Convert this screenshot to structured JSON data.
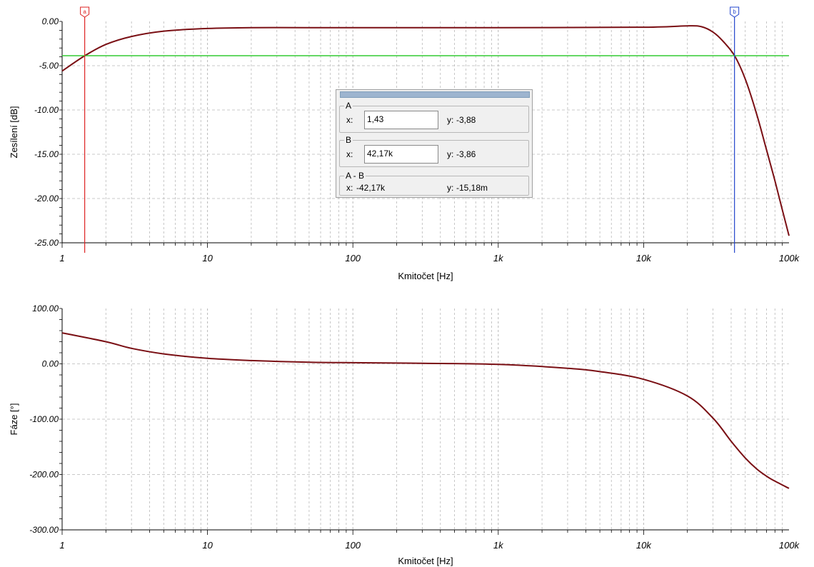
{
  "colors": {
    "curve": "#7a0f14",
    "cursor_a": "#dd2222",
    "cursor_b": "#2244cc",
    "level_line": "#33cc33",
    "grid": "#b8b8b8"
  },
  "gain_plot": {
    "ylabel": "Zesílení [dB]",
    "xlabel": "Kmitočet [Hz]",
    "y_ticks": [
      "0.00",
      "-5.00",
      "-10.00",
      "-15.00",
      "-20.00",
      "-25.00"
    ],
    "x_ticks": [
      "1",
      "10",
      "100",
      "1k",
      "10k",
      "100k"
    ]
  },
  "phase_plot": {
    "ylabel": "Fáze [°]",
    "xlabel": "Kmitočet [Hz]",
    "y_ticks": [
      "100.00",
      "0.00",
      "-100.00",
      "-200.00",
      "-300.00"
    ],
    "x_ticks": [
      "1",
      "10",
      "100",
      "1k",
      "10k",
      "100k"
    ]
  },
  "cursors": {
    "a_tag": "a",
    "b_tag": "b"
  },
  "readout": {
    "a": {
      "label": "A",
      "x_label": "x:",
      "x_value": "1,43",
      "y_label": "y:",
      "y_value": "-3,88"
    },
    "b": {
      "label": "B",
      "x_label": "x:",
      "x_value": "42,17k",
      "y_label": "y:",
      "y_value": "-3,86"
    },
    "diff": {
      "label": "A - B",
      "x_label": "x:",
      "x_value": "-42,17k",
      "y_label": "y:",
      "y_value": "-15,18m"
    }
  },
  "chart_data": [
    {
      "type": "line",
      "xscale": "log",
      "xlim": [
        1,
        100000
      ],
      "ylim": [
        -25,
        0
      ],
      "xlabel": "Kmitočet [Hz]",
      "ylabel": "Zesílení [dB]",
      "grid": true,
      "series": [
        {
          "x": [
            1,
            1.43,
            2,
            3,
            5,
            10,
            20,
            50,
            100,
            1000,
            10000,
            20000,
            25000,
            30000,
            35000,
            42170,
            50000,
            60000,
            70000,
            80000,
            90000,
            100000
          ],
          "y": [
            -5.6,
            -3.88,
            -2.6,
            -1.7,
            -1.1,
            -0.8,
            -0.7,
            -0.7,
            -0.7,
            -0.7,
            -0.65,
            -0.5,
            -0.6,
            -1.2,
            -2.2,
            -3.86,
            -6.5,
            -10.5,
            -14.5,
            -18.0,
            -21.3,
            -24.2
          ]
        }
      ],
      "cursors": [
        {
          "name": "a",
          "x": 1.43,
          "y": -3.88
        },
        {
          "name": "b",
          "x": 42170,
          "y": -3.86
        }
      ],
      "level_line_y": -3.87
    },
    {
      "type": "line",
      "xscale": "log",
      "xlim": [
        1,
        100000
      ],
      "ylim": [
        -300,
        100
      ],
      "xlabel": "Kmitočet [Hz]",
      "ylabel": "Fáze [°]",
      "grid": true,
      "series": [
        {
          "x": [
            1,
            2,
            3,
            5,
            10,
            20,
            50,
            100,
            300,
            1000,
            3000,
            5000,
            10000,
            20000,
            30000,
            40000,
            50000,
            60000,
            70000,
            80000,
            100000
          ],
          "y": [
            56,
            40,
            28,
            18,
            10,
            6,
            3,
            2,
            1,
            -1,
            -8,
            -14,
            -28,
            -58,
            -98,
            -140,
            -170,
            -190,
            -203,
            -212,
            -225
          ]
        }
      ]
    }
  ]
}
